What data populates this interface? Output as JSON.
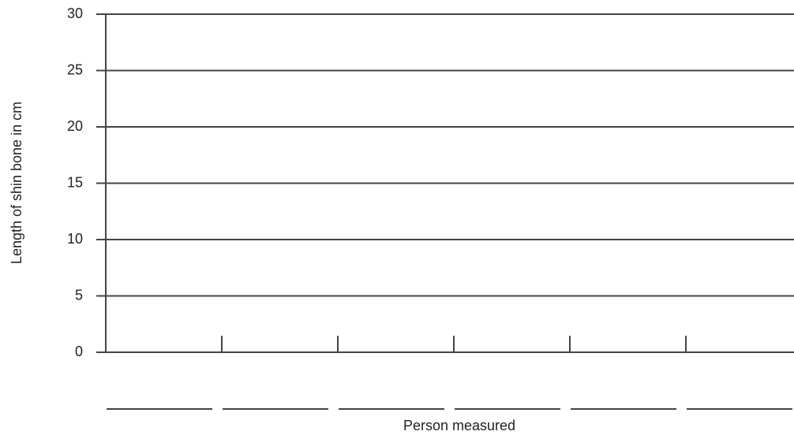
{
  "chart_data": {
    "type": "bar",
    "y_label": "Length of shin bone in cm",
    "x_label": "Person measured",
    "categories": [
      null,
      null,
      null,
      null,
      null,
      null
    ],
    "ylim": [
      0,
      30
    ],
    "yticks": [
      0,
      5,
      10,
      15,
      20,
      25,
      30
    ],
    "grid": true
  }
}
